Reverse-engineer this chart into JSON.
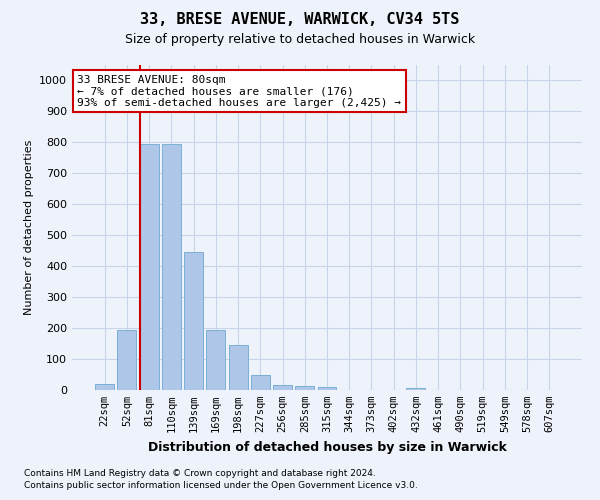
{
  "title": "33, BRESE AVENUE, WARWICK, CV34 5TS",
  "subtitle": "Size of property relative to detached houses in Warwick",
  "xlabel": "Distribution of detached houses by size in Warwick",
  "ylabel": "Number of detached properties",
  "footnote1": "Contains HM Land Registry data © Crown copyright and database right 2024.",
  "footnote2": "Contains public sector information licensed under the Open Government Licence v3.0.",
  "categories": [
    "22sqm",
    "52sqm",
    "81sqm",
    "110sqm",
    "139sqm",
    "169sqm",
    "198sqm",
    "227sqm",
    "256sqm",
    "285sqm",
    "315sqm",
    "344sqm",
    "373sqm",
    "402sqm",
    "432sqm",
    "461sqm",
    "490sqm",
    "519sqm",
    "549sqm",
    "578sqm",
    "607sqm"
  ],
  "values": [
    18,
    195,
    795,
    795,
    445,
    195,
    145,
    50,
    15,
    13,
    10,
    0,
    0,
    0,
    8,
    0,
    0,
    0,
    0,
    0,
    0
  ],
  "bar_color": "#aec6e8",
  "bar_edge_color": "#7aafd4",
  "grid_color": "#c8d4e8",
  "vline_color": "#cc0000",
  "annotation_text": "33 BRESE AVENUE: 80sqm\n← 7% of detached houses are smaller (176)\n93% of semi-detached houses are larger (2,425) →",
  "annotation_box_color": "#ffffff",
  "annotation_box_edge": "#cc0000",
  "ylim": [
    0,
    1050
  ],
  "yticks": [
    0,
    100,
    200,
    300,
    400,
    500,
    600,
    700,
    800,
    900,
    1000
  ],
  "background_color": "#eef2fa"
}
